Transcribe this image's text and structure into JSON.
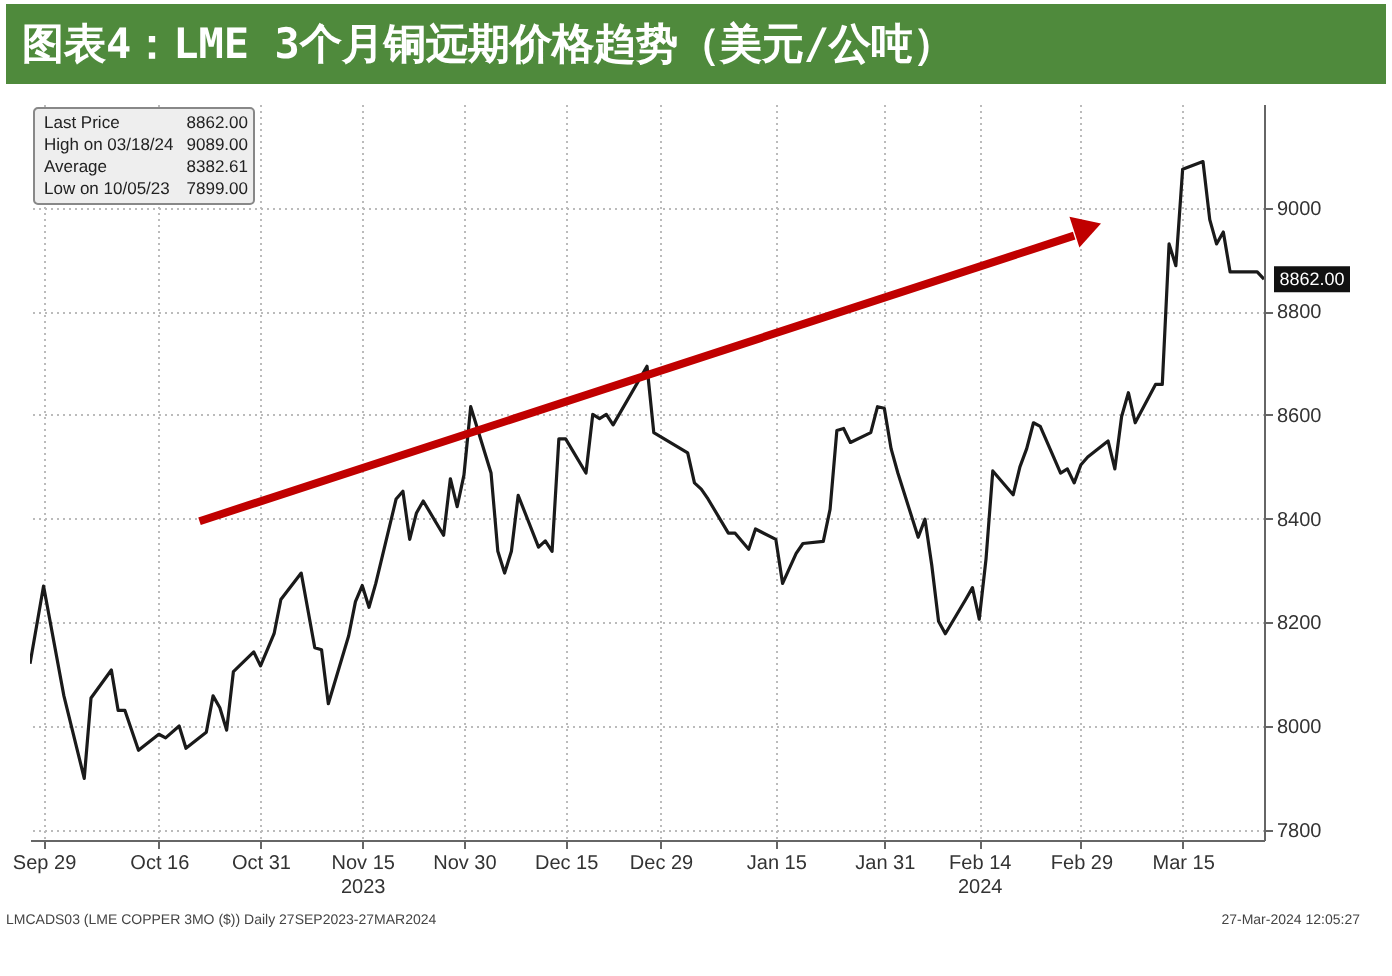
{
  "chart_data": {
    "type": "line",
    "title": "图表4：LME 3个月铜远期价格趋势（美元/公吨）",
    "x": [
      "2023-09-27",
      "2023-09-29",
      "2023-10-02",
      "2023-10-05",
      "2023-10-06",
      "2023-10-09",
      "2023-10-10",
      "2023-10-11",
      "2023-10-13",
      "2023-10-16",
      "2023-10-17",
      "2023-10-19",
      "2023-10-20",
      "2023-10-23",
      "2023-10-24",
      "2023-10-25",
      "2023-10-26",
      "2023-10-27",
      "2023-10-30",
      "2023-10-31",
      "2023-11-02",
      "2023-11-03",
      "2023-11-06",
      "2023-11-08",
      "2023-11-09",
      "2023-11-10",
      "2023-11-13",
      "2023-11-14",
      "2023-11-15",
      "2023-11-16",
      "2023-11-17",
      "2023-11-20",
      "2023-11-21",
      "2023-11-22",
      "2023-11-23",
      "2023-11-24",
      "2023-11-27",
      "2023-11-28",
      "2023-11-29",
      "2023-11-30",
      "2023-12-01",
      "2023-12-04",
      "2023-12-05",
      "2023-12-06",
      "2023-12-07",
      "2023-12-08",
      "2023-12-11",
      "2023-12-12",
      "2023-12-13",
      "2023-12-14",
      "2023-12-15",
      "2023-12-18",
      "2023-12-19",
      "2023-12-20",
      "2023-12-21",
      "2023-12-22",
      "2023-12-27",
      "2023-12-28",
      "2024-01-02",
      "2024-01-03",
      "2024-01-04",
      "2024-01-05",
      "2024-01-08",
      "2024-01-09",
      "2024-01-11",
      "2024-01-12",
      "2024-01-15",
      "2024-01-16",
      "2024-01-18",
      "2024-01-19",
      "2024-01-22",
      "2024-01-23",
      "2024-01-24",
      "2024-01-25",
      "2024-01-26",
      "2024-01-29",
      "2024-01-30",
      "2024-01-31",
      "2024-02-01",
      "2024-02-02",
      "2024-02-05",
      "2024-02-06",
      "2024-02-07",
      "2024-02-08",
      "2024-02-09",
      "2024-02-12",
      "2024-02-13",
      "2024-02-14",
      "2024-02-15",
      "2024-02-16",
      "2024-02-19",
      "2024-02-20",
      "2024-02-21",
      "2024-02-22",
      "2024-02-23",
      "2024-02-26",
      "2024-02-27",
      "2024-02-28",
      "2024-02-29",
      "2024-03-01",
      "2024-03-04",
      "2024-03-05",
      "2024-03-06",
      "2024-03-07",
      "2024-03-08",
      "2024-03-11",
      "2024-03-12",
      "2024-03-13",
      "2024-03-14",
      "2024-03-15",
      "2024-03-18",
      "2024-03-19",
      "2024-03-20",
      "2024-03-21",
      "2024-03-22",
      "2024-03-26",
      "2024-03-27"
    ],
    "series": [
      {
        "color": "#1a1a1a",
        "values": [
          8120,
          8270,
          8058,
          7899,
          8054,
          8108,
          8030,
          8030,
          7953,
          7984,
          7977,
          8000,
          7957,
          7988,
          8058,
          8035,
          7992,
          8105,
          8143,
          8116,
          8178,
          8244,
          8295,
          8151,
          8147,
          8043,
          8174,
          8240,
          8271,
          8229,
          8275,
          8438,
          8453,
          8360,
          8411,
          8434,
          8368,
          8477,
          8423,
          8484,
          8616,
          8488,
          8337,
          8295,
          8337,
          8445,
          8345,
          8357,
          8337,
          8554,
          8554,
          8488,
          8601,
          8593,
          8601,
          8581,
          8694,
          8566,
          8527,
          8469,
          8457,
          8438,
          8372,
          8372,
          8341,
          8380,
          8360,
          8275,
          8333,
          8352,
          8356,
          8418,
          8570,
          8574,
          8547,
          8566,
          8616,
          8613,
          8535,
          8488,
          8364,
          8399,
          8310,
          8202,
          8178,
          8244,
          8267,
          8206,
          8322,
          8492,
          8446,
          8500,
          8535,
          8585,
          8578,
          8488,
          8496,
          8469,
          8504,
          8519,
          8550,
          8496,
          8597,
          8643,
          8585,
          8659,
          8659,
          8930,
          8888,
          9074,
          9089,
          8977,
          8930,
          8953,
          8876,
          8876,
          8862
        ]
      }
    ],
    "xlim": [
      "2023-09-27",
      "2024-03-27"
    ],
    "xticks": [
      {
        "value": "2023-09-29",
        "label": "Sep 29"
      },
      {
        "value": "2023-10-16",
        "label": "Oct 16"
      },
      {
        "value": "2023-10-31",
        "label": "Oct 31"
      },
      {
        "value": "2023-11-15",
        "label": "Nov 15\n2023"
      },
      {
        "value": "2023-11-30",
        "label": "Nov 30"
      },
      {
        "value": "2023-12-15",
        "label": "Dec 15"
      },
      {
        "value": "2023-12-29",
        "label": "Dec 29"
      },
      {
        "value": "2024-01-15",
        "label": "Jan 15"
      },
      {
        "value": "2024-01-31",
        "label": "Jan 31"
      },
      {
        "value": "2024-02-14",
        "label": "Feb 14\n2024"
      },
      {
        "value": "2024-02-29",
        "label": "Feb 29"
      },
      {
        "value": "2024-03-15",
        "label": "Mar 15"
      }
    ],
    "ylim": [
      7780,
      9200
    ],
    "yticks": [
      7800,
      8000,
      8200,
      8400,
      8600,
      8800,
      9000
    ],
    "grid": true,
    "annotations": [
      "Last Price 8862.00",
      "High on 03/18/24 9089.00",
      "Average 8382.61",
      "Low on 10/05/23 7899.00",
      "LMCADS03 (LME COPPER 3MO ($)) Daily 27SEP2023-27MAR2024",
      "27-Mar-2024 12:05:27",
      {
        "text": "8862.00",
        "x": "2024-03-27",
        "y": 8862
      }
    ]
  }
}
